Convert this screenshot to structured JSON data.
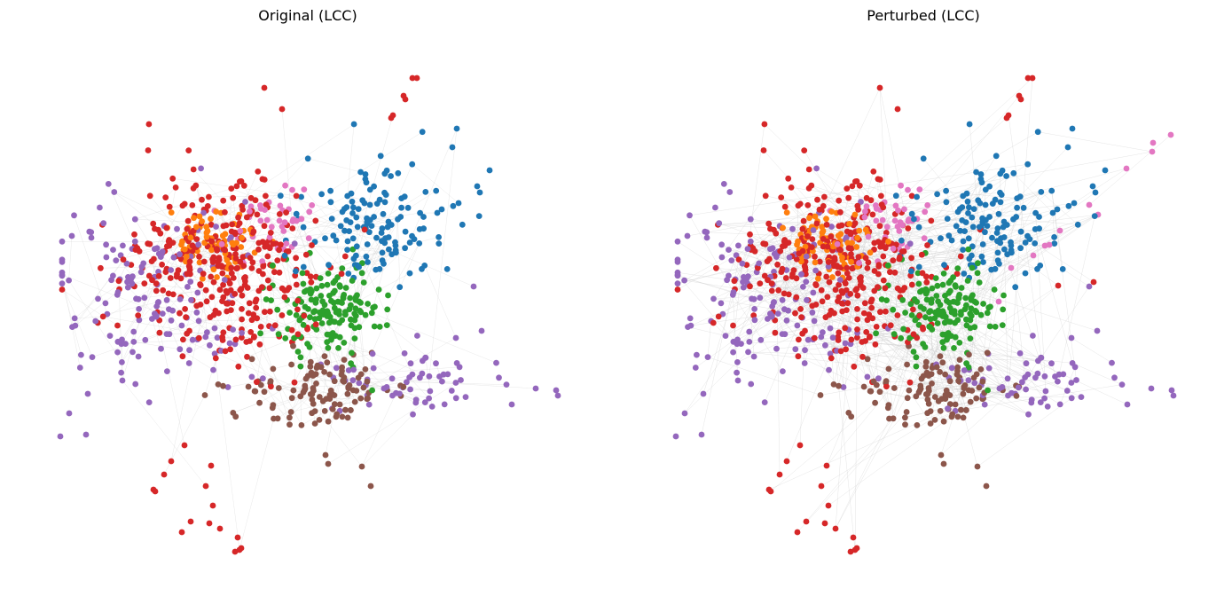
{
  "panels": [
    {
      "title": "Original (LCC)"
    },
    {
      "title": "Perturbed (LCC)"
    }
  ],
  "colors": {
    "blue": "#1f77b4",
    "orange": "#ff7f0e",
    "green": "#2ca02c",
    "red": "#d62728",
    "purple": "#9467bd",
    "brown": "#8c564b",
    "pink": "#e377c2",
    "edge": "#cccccc"
  }
}
